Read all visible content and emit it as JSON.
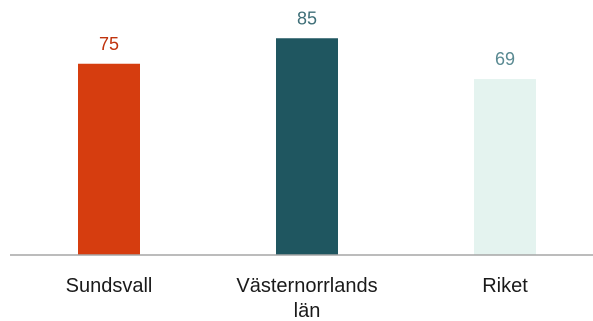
{
  "chart_data": {
    "type": "bar",
    "categories": [
      [
        "Sundsvall"
      ],
      [
        "Västernorrlands",
        "län"
      ],
      [
        "Riket"
      ]
    ],
    "values": [
      75,
      85,
      69
    ],
    "colors": [
      "#d63d0f",
      "#1f5660",
      "#e4f3ef"
    ],
    "label_colors": [
      "#c0330d",
      "#3f6f78",
      "#5a8a92"
    ],
    "axis_color": "#a6a6a6",
    "ylim": [
      0,
      100
    ],
    "gridlines": false,
    "legend": "none"
  }
}
